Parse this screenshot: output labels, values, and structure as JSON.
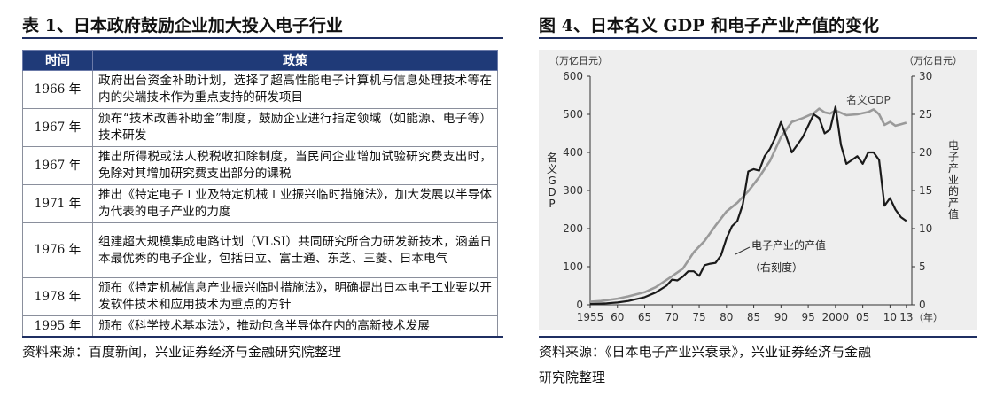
{
  "left": {
    "title": "表 1、日本政府鼓励企业加大投入电子行业",
    "source": "资料来源：百度新闻，兴业证券经济与金融研究院整理",
    "table": {
      "headers": [
        "时间",
        "政策"
      ],
      "rows": [
        {
          "year": "1966 年",
          "policy": "政府出台资金补助计划，选择了超高性能电子计算机与信息处理技术等在内的尖端技术作为重点支持的研发项目"
        },
        {
          "year": "1967 年",
          "policy": "颁布“技术改善补助金”制度，鼓励企业进行指定领域（如能源、电子等）技术研发"
        },
        {
          "year": "1967 年",
          "policy": "推出所得税或法人税税收扣除制度，当民间企业增加试验研究费支出时，免除对其增加研究费支出部分的课税"
        },
        {
          "year": "1971 年",
          "policy": "推出《特定电子工业及特定机械工业振兴临时措施法》，加大发展以半导体为代表的电子产业的力度"
        },
        {
          "year": "1976 年",
          "policy": "组建超大规模集成电路计划（VLSI）共同研究所合力研发新技术，涵盖日本最优秀的电子企业，包括日立、富士通、东芝、三菱、日本电气"
        },
        {
          "year": "1978 年",
          "policy": "颁布《特定机械信息产业振兴临时措施法》，明确提出日本电子工业要以开发软件技术和应用技术为重点的方针"
        },
        {
          "year": "1995 年",
          "policy": "颁布《科学技术基本法》，推动包含半导体在内的高新技术发展"
        }
      ]
    }
  },
  "right": {
    "title": "图 4、日本名义 GDP 和电子产业产值的变化",
    "source_line1": "资料来源：《日本电子产业兴衰录》，兴业证券经济与金融",
    "source_line2": "研究院整理"
  },
  "chart_data": {
    "type": "line",
    "left_unit": "（万亿日元）",
    "right_unit": "（万亿日元）",
    "left_axis_label": "名义GDP",
    "right_axis_label": "电子产业的产值",
    "x_ticks": [
      "1955",
      "60",
      "65",
      "70",
      "75",
      "80",
      "85",
      "90",
      "95",
      "2000",
      "05",
      "10",
      "13",
      "（年）"
    ],
    "x_tick_years": [
      1955,
      1960,
      1965,
      1970,
      1975,
      1980,
      1985,
      1990,
      1995,
      2000,
      2005,
      2010,
      2013
    ],
    "x_range": [
      1955,
      2014
    ],
    "y_left": {
      "min": 0,
      "max": 600,
      "ticks": [
        0,
        100,
        200,
        300,
        400,
        500,
        600
      ]
    },
    "y_right": {
      "min": 0,
      "max": 30,
      "ticks": [
        0,
        5,
        10,
        15,
        20,
        25,
        30
      ]
    },
    "series": [
      {
        "name": "名义GDP",
        "axis": "left",
        "color": "#9a9a9a",
        "x": [
          1955,
          1957,
          1960,
          1962,
          1965,
          1967,
          1970,
          1972,
          1974,
          1976,
          1978,
          1980,
          1982,
          1984,
          1986,
          1988,
          1990,
          1992,
          1994,
          1996,
          1997,
          1998,
          1999,
          2000,
          2002,
          2004,
          2006,
          2007,
          2008,
          2009,
          2010,
          2011,
          2012,
          2013
        ],
        "y": [
          8,
          10,
          16,
          22,
          33,
          46,
          75,
          95,
          138,
          168,
          208,
          245,
          268,
          298,
          335,
          378,
          440,
          480,
          490,
          503,
          515,
          505,
          502,
          510,
          498,
          500,
          506,
          513,
          500,
          472,
          480,
          470,
          474,
          478
        ]
      },
      {
        "name": "电子产业的产值",
        "axis": "right",
        "color": "#1a1a1a",
        "label_line2": "（右刻度）",
        "x": [
          1955,
          1958,
          1960,
          1962,
          1965,
          1967,
          1969,
          1970,
          1971,
          1972,
          1973,
          1974,
          1975,
          1976,
          1977,
          1978,
          1979,
          1980,
          1981,
          1982,
          1983,
          1984,
          1985,
          1986,
          1987,
          1988,
          1989,
          1990,
          1991,
          1992,
          1993,
          1994,
          1995,
          1996,
          1997,
          1998,
          1999,
          2000,
          2001,
          2002,
          2003,
          2004,
          2005,
          2006,
          2007,
          2008,
          2009,
          2010,
          2011,
          2012,
          2013
        ],
        "y": [
          0.1,
          0.2,
          0.3,
          0.5,
          1.0,
          1.6,
          2.5,
          3.3,
          3.2,
          3.7,
          4.4,
          4.4,
          3.8,
          5.2,
          5.4,
          5.5,
          6.5,
          8.7,
          10.3,
          11.0,
          13.2,
          17.5,
          17.8,
          17.6,
          19.5,
          20.5,
          22.0,
          24.0,
          22.0,
          20.0,
          21.0,
          22.0,
          23.5,
          25.0,
          24.5,
          22.5,
          23.0,
          26.0,
          21.0,
          18.5,
          19.0,
          19.5,
          18.5,
          20.0,
          20.0,
          19.0,
          13.0,
          14.0,
          12.5,
          11.5,
          11.0
        ]
      }
    ],
    "grid": false
  }
}
